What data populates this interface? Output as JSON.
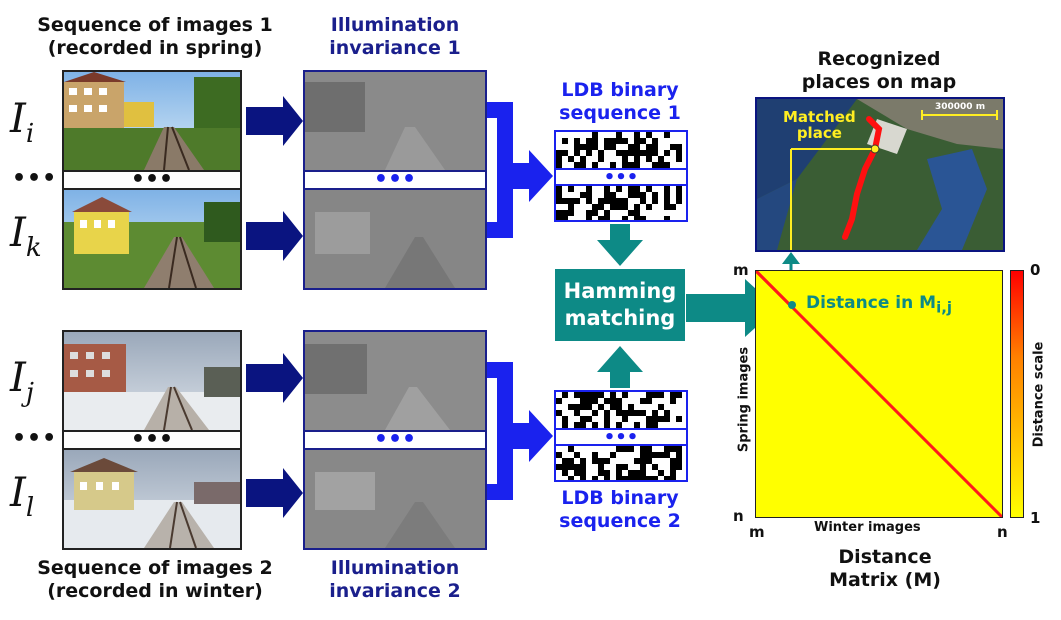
{
  "seq1": {
    "title_line1": "Sequence of images 1",
    "title_line2": "(recorded in spring)"
  },
  "seq2": {
    "title_line1": "Sequence of images 2",
    "title_line2": "(recorded in winter)"
  },
  "illum1": {
    "line1": "Illumination",
    "line2": "invariance 1"
  },
  "illum2": {
    "line1": "Illumination",
    "line2": "invariance 2"
  },
  "ldb1": {
    "line1": "LDB binary",
    "line2": "sequence 1"
  },
  "ldb2": {
    "line1": "LDB binary",
    "line2": "sequence 2"
  },
  "hamming": {
    "line1": "Hamming",
    "line2": "matching"
  },
  "image_labels": {
    "i_base": "I",
    "i_sub": "i",
    "k_base": "I",
    "k_sub": "k",
    "j_base": "I",
    "j_sub": "j",
    "l_base": "I",
    "l_sub": "l"
  },
  "ellipsis": "•••",
  "map": {
    "title_line1": "Recognized",
    "title_line2": "places on map",
    "matched_line1": "Matched",
    "matched_line2": "place",
    "scale_label": "300000 m"
  },
  "matrix": {
    "m_top": "m",
    "n_left": "n",
    "m_bottom": "m",
    "n_bottom": "n",
    "y_label": "Spring images",
    "x_label": "Winter images",
    "distance_label": "Distance in M",
    "distance_sub": "i,j",
    "caption_line1": "Distance",
    "caption_line2": "Matrix (M)"
  },
  "colorbar": {
    "top": "0",
    "bottom": "1",
    "label": "Distance scale"
  },
  "colors": {
    "navy_arrow": "#0a1480",
    "bracket_blue": "#1a22ee",
    "teal": "#0d8a86",
    "matrix_yellow": "#ffff00",
    "diagonal_red": "#ff1a1a",
    "map_track": "#ff1010",
    "map_label_yellow": "#ffee22"
  }
}
